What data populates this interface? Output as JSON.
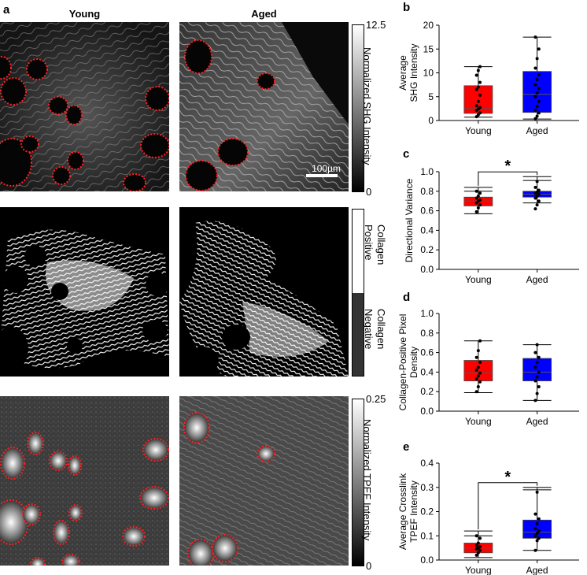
{
  "panel_a": {
    "letter": "a",
    "col_titles": [
      "Young",
      "Aged"
    ],
    "row1": {
      "colorbar_label": "Normalized SHG Intensity",
      "colorbar_max": "12.5",
      "colorbar_min": "0",
      "scale_bar": "100µm"
    },
    "row2": {
      "colorbar_top": "Collagen\nPositive",
      "colorbar_bottom": "Collagen\nNegative",
      "top_line1": "Collagen",
      "top_line2": "Positive",
      "bot_line1": "Collagen",
      "bot_line2": "Negative"
    },
    "row3": {
      "colorbar_label": "Normalized TPEF Intensity",
      "colorbar_max": "0.25",
      "colorbar_min": "0"
    }
  },
  "chart_data": [
    {
      "panel": "b",
      "type": "box",
      "ylabel_line1": "Average",
      "ylabel_line2": "SHG Intensity",
      "ylim": [
        0,
        20
      ],
      "yticks": [
        "0",
        "5",
        "10",
        "15",
        "20"
      ],
      "ytick_values": [
        0,
        5,
        10,
        15,
        20
      ],
      "categories": [
        "Young",
        "Aged"
      ],
      "colors": [
        "#ff0000",
        "#0000ff"
      ],
      "boxes": [
        {
          "q1": 1.5,
          "median": 2.5,
          "q3": 7.3,
          "whisker_low": 0.7,
          "whisker_high": 11.3,
          "points": [
            0.8,
            1.2,
            1.6,
            2.1,
            2.4,
            2.7,
            3.1,
            4.0,
            5.3,
            6.5,
            7.0,
            8.0,
            9.5,
            10.5,
            11.3
          ]
        },
        {
          "q1": 1.7,
          "median": 5.5,
          "q3": 10.3,
          "whisker_low": 0.3,
          "whisker_high": 17.5,
          "points": [
            0.4,
            0.9,
            1.6,
            2.2,
            3.0,
            4.0,
            5.0,
            5.8,
            6.7,
            7.5,
            8.6,
            9.6,
            11.0,
            13.0,
            15.0,
            17.5
          ]
        }
      ],
      "significance": ""
    },
    {
      "panel": "c",
      "type": "box",
      "ylabel_line1": "Directional Variance",
      "ylabel_line2": "",
      "ylim": [
        0,
        1.0
      ],
      "yticks": [
        "0.0",
        "0.2",
        "0.4",
        "0.6",
        "0.8",
        "1.0"
      ],
      "ytick_values": [
        0,
        0.2,
        0.4,
        0.6,
        0.8,
        1.0
      ],
      "categories": [
        "Young",
        "Aged"
      ],
      "colors": [
        "#ff0000",
        "#0000ff"
      ],
      "boxes": [
        {
          "q1": 0.65,
          "median": 0.7,
          "q3": 0.74,
          "whisker_low": 0.57,
          "whisker_high": 0.84,
          "extra_caps": [
            0.8
          ],
          "points": [
            0.59,
            0.63,
            0.66,
            0.68,
            0.7,
            0.71,
            0.73,
            0.75,
            0.78,
            0.8
          ]
        },
        {
          "q1": 0.74,
          "median": 0.77,
          "q3": 0.8,
          "whisker_low": 0.68,
          "whisker_high": 0.95,
          "extra_caps": [
            0.91
          ],
          "points": [
            0.62,
            0.66,
            0.7,
            0.73,
            0.75,
            0.77,
            0.78,
            0.79,
            0.81,
            0.84,
            0.9
          ]
        }
      ],
      "significance": "*"
    },
    {
      "panel": "d",
      "type": "box",
      "ylabel_line1": "Collagen-Positive Pixel",
      "ylabel_line2": "Density",
      "ylim": [
        0,
        1.0
      ],
      "yticks": [
        "0.0",
        "0.2",
        "0.4",
        "0.6",
        "0.8",
        "1.0"
      ],
      "ytick_values": [
        0,
        0.2,
        0.4,
        0.6,
        0.8,
        1.0
      ],
      "categories": [
        "Young",
        "Aged"
      ],
      "colors": [
        "#ff0000",
        "#0000ff"
      ],
      "boxes": [
        {
          "q1": 0.31,
          "median": 0.39,
          "q3": 0.52,
          "whisker_low": 0.19,
          "whisker_high": 0.72,
          "points": [
            0.2,
            0.25,
            0.3,
            0.33,
            0.36,
            0.39,
            0.42,
            0.45,
            0.5,
            0.55,
            0.62,
            0.72
          ]
        },
        {
          "q1": 0.31,
          "median": 0.4,
          "q3": 0.54,
          "whisker_low": 0.11,
          "whisker_high": 0.68,
          "points": [
            0.11,
            0.18,
            0.25,
            0.31,
            0.35,
            0.4,
            0.45,
            0.5,
            0.55,
            0.6,
            0.68
          ]
        }
      ],
      "significance": ""
    },
    {
      "panel": "e",
      "type": "box",
      "ylabel_line1": "Average Crosslink",
      "ylabel_line2": "TPEF Intensity",
      "ylim": [
        0,
        0.4
      ],
      "yticks": [
        "0.0",
        "0.1",
        "0.2",
        "0.3",
        "0.4"
      ],
      "ytick_values": [
        0,
        0.1,
        0.2,
        0.3,
        0.4
      ],
      "categories": [
        "Young",
        "Aged"
      ],
      "colors": [
        "#ff0000",
        "#0000ff"
      ],
      "boxes": [
        {
          "q1": 0.03,
          "median": 0.05,
          "q3": 0.07,
          "whisker_low": 0.01,
          "whisker_high": 0.12,
          "extra_caps": [
            0.1
          ],
          "points": [
            0.02,
            0.03,
            0.04,
            0.045,
            0.05,
            0.055,
            0.06,
            0.07,
            0.09,
            0.1
          ]
        },
        {
          "q1": 0.09,
          "median": 0.115,
          "q3": 0.165,
          "whisker_low": 0.04,
          "whisker_high": 0.3,
          "extra_caps": [
            0.29
          ],
          "points": [
            0.04,
            0.08,
            0.09,
            0.1,
            0.11,
            0.12,
            0.13,
            0.15,
            0.17,
            0.19,
            0.28
          ]
        }
      ],
      "significance": "*"
    }
  ]
}
